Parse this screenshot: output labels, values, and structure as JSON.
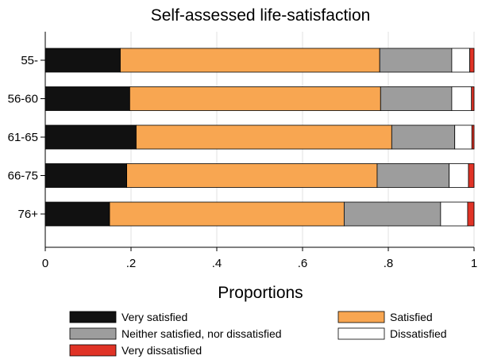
{
  "chart_data": {
    "type": "bar",
    "orientation": "horizontal",
    "stacked": true,
    "title": "Self-assessed life-satisfaction",
    "xlabel": "Proportions",
    "ylabel": "",
    "xlim": [
      0,
      1
    ],
    "xticks": [
      "0",
      ".2",
      ".4",
      ".6",
      ".8",
      "1"
    ],
    "xtick_values": [
      0,
      0.2,
      0.4,
      0.6,
      0.8,
      1
    ],
    "grid": true,
    "legend_position": "bottom",
    "categories": [
      "55-",
      "56-60",
      "61-65",
      "66-75",
      "76+"
    ],
    "series": [
      {
        "name": "Very satisfied",
        "color": "#111111",
        "values": [
          0.175,
          0.197,
          0.212,
          0.19,
          0.15
        ]
      },
      {
        "name": "Satisfied",
        "color": "#f8a651",
        "values": [
          0.605,
          0.585,
          0.596,
          0.584,
          0.547
        ]
      },
      {
        "name": "Neither satisfied, nor dissatisfied",
        "color": "#9d9d9d",
        "values": [
          0.168,
          0.166,
          0.147,
          0.168,
          0.225
        ]
      },
      {
        "name": "Dissatisfied",
        "color": "#ffffff",
        "values": [
          0.042,
          0.046,
          0.04,
          0.045,
          0.063
        ]
      },
      {
        "name": "Very dissatisfied",
        "color": "#e03326",
        "values": [
          0.01,
          0.006,
          0.005,
          0.013,
          0.015
        ]
      }
    ]
  }
}
